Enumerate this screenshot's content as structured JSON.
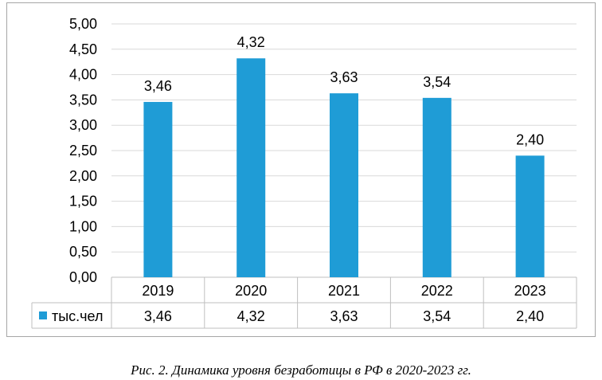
{
  "chart_data": {
    "type": "bar",
    "categories": [
      "2019",
      "2020",
      "2021",
      "2022",
      "2023"
    ],
    "series": [
      {
        "name": "тыс.чел",
        "values": [
          3.46,
          4.32,
          3.63,
          3.54,
          2.4
        ],
        "labels": [
          "3,46",
          "4,32",
          "3,63",
          "3,54",
          "2,40"
        ],
        "color": "#1f9cd6"
      }
    ],
    "y_ticks": [
      "0,00",
      "0,50",
      "1,00",
      "1,50",
      "2,00",
      "2,50",
      "3,00",
      "3,50",
      "4,00",
      "4,50",
      "5,00"
    ],
    "ylim": [
      0,
      5
    ],
    "grid": true,
    "legend": "data-table"
  },
  "caption": "Рис. 2. Динамика уровня безработицы в РФ в 2020-2023 гг."
}
